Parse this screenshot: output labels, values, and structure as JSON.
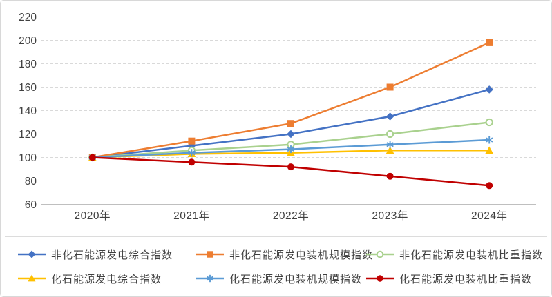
{
  "chart_data": {
    "type": "line",
    "x": [
      "2020年",
      "2021年",
      "2022年",
      "2023年",
      "2024年"
    ],
    "series": [
      {
        "name": "非化石能源发电综合指数",
        "color": "#4472C4",
        "marker": "diamond",
        "values": [
          100,
          110,
          120,
          135,
          158
        ]
      },
      {
        "name": "非化石能源发电装机规模指数",
        "color": "#ED7D31",
        "marker": "square",
        "values": [
          100,
          114,
          129,
          160,
          198
        ]
      },
      {
        "name": "非化石能源发电装机比重指数",
        "color": "#A9D18E",
        "marker": "circle-open",
        "values": [
          100,
          106,
          111,
          120,
          130
        ]
      },
      {
        "name": "化石能源发电综合指数",
        "color": "#FFC000",
        "marker": "triangle",
        "values": [
          100,
          103,
          104,
          106,
          106
        ]
      },
      {
        "name": "化石能源发电装机规模指数",
        "color": "#5B9BD5",
        "marker": "asterisk",
        "values": [
          100,
          104,
          107,
          111,
          115
        ]
      },
      {
        "name": "化石能源发电装机比重指数",
        "color": "#C00000",
        "marker": "circle",
        "values": [
          100,
          96,
          92,
          84,
          76
        ]
      }
    ],
    "title": "",
    "xlabel": "",
    "ylabel": "",
    "ylim": [
      60,
      220
    ],
    "yticks": [
      60,
      80,
      100,
      120,
      140,
      160,
      180,
      200,
      220
    ],
    "grid": "horizontal-dashed",
    "legend_position": "bottom",
    "legend_rows": [
      [
        0,
        1,
        2
      ],
      [
        3,
        4,
        5
      ]
    ]
  },
  "style": {
    "axis_label_color": "#404040",
    "gridline_color": "#d9d9d9",
    "axis_line_color": "#bfbfbf",
    "border_color": "#d8d8d8",
    "background": "#ffffff"
  }
}
